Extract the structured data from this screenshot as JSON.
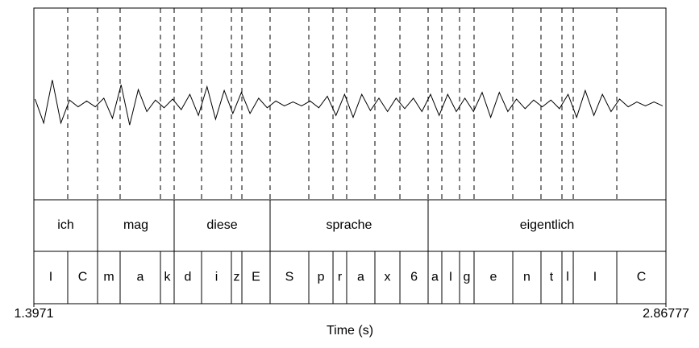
{
  "chart_data": {
    "type": "textgrid",
    "xlabel": "Time (s)",
    "xlim": [
      1.3971,
      2.86777
    ],
    "xticks": [
      1.3971,
      2.86777
    ],
    "waveform": {
      "x": [
        1.4,
        1.42,
        1.44,
        1.46,
        1.48,
        1.5,
        1.52,
        1.54,
        1.56,
        1.58,
        1.6,
        1.62,
        1.64,
        1.66,
        1.68,
        1.7,
        1.72,
        1.74,
        1.76,
        1.78,
        1.8,
        1.82,
        1.84,
        1.86,
        1.88,
        1.9,
        1.92,
        1.94,
        1.96,
        1.98,
        2.0,
        2.02,
        2.04,
        2.06,
        2.08,
        2.1,
        2.12,
        2.14,
        2.16,
        2.18,
        2.2,
        2.22,
        2.24,
        2.26,
        2.28,
        2.3,
        2.32,
        2.34,
        2.36,
        2.38,
        2.4,
        2.42,
        2.44,
        2.46,
        2.48,
        2.5,
        2.52,
        2.54,
        2.56,
        2.58,
        2.6,
        2.62,
        2.64,
        2.66,
        2.68,
        2.7,
        2.72,
        2.74,
        2.76,
        2.78,
        2.8,
        2.82,
        2.84,
        2.86
      ],
      "values": [
        0.05,
        -0.2,
        0.25,
        -0.2,
        0.04,
        -0.03,
        0.03,
        -0.03,
        0.06,
        -0.15,
        0.2,
        -0.22,
        0.15,
        -0.08,
        0.04,
        -0.04,
        0.05,
        -0.06,
        0.1,
        -0.12,
        0.18,
        -0.16,
        0.14,
        -0.1,
        0.12,
        -0.1,
        0.06,
        -0.04,
        0.03,
        -0.02,
        0.02,
        -0.02,
        0.03,
        -0.04,
        0.08,
        -0.12,
        0.1,
        -0.14,
        0.1,
        -0.07,
        0.06,
        -0.08,
        0.06,
        -0.05,
        0.06,
        -0.08,
        0.1,
        -0.12,
        0.1,
        -0.08,
        0.06,
        -0.08,
        0.12,
        -0.14,
        0.12,
        -0.08,
        0.05,
        -0.05,
        0.04,
        -0.03,
        0.04,
        -0.05,
        0.1,
        -0.14,
        0.14,
        -0.12,
        0.1,
        -0.08,
        0.05,
        -0.03,
        0.02,
        -0.02,
        0.02,
        -0.02
      ],
      "ylim": [
        -1,
        1
      ]
    },
    "tiers": [
      {
        "labels": [
          "ich",
          "mag",
          "diese",
          "sprache",
          "eigentlich"
        ],
        "boundaries": [
          1.3971,
          1.5453,
          1.7235,
          1.9467,
          2.3144,
          2.86777
        ]
      },
      {
        "labels": [
          "I",
          "C",
          "m",
          "a",
          "k",
          "d",
          "i",
          "z",
          "E",
          "S",
          "p",
          "r",
          "a",
          "x",
          "6",
          "a",
          "I",
          "g",
          "e",
          "n",
          "t",
          "l",
          "I",
          "C"
        ],
        "boundaries": [
          1.3971,
          1.4759,
          1.5453,
          1.5978,
          1.6916,
          1.7235,
          1.7873,
          1.8567,
          1.8811,
          1.9467,
          2.0368,
          2.0931,
          2.1249,
          2.1906,
          2.2488,
          2.3144,
          2.3463,
          2.3876,
          2.4213,
          2.5114,
          2.577,
          2.6258,
          2.6521,
          2.7534,
          2.86777
        ]
      }
    ]
  }
}
